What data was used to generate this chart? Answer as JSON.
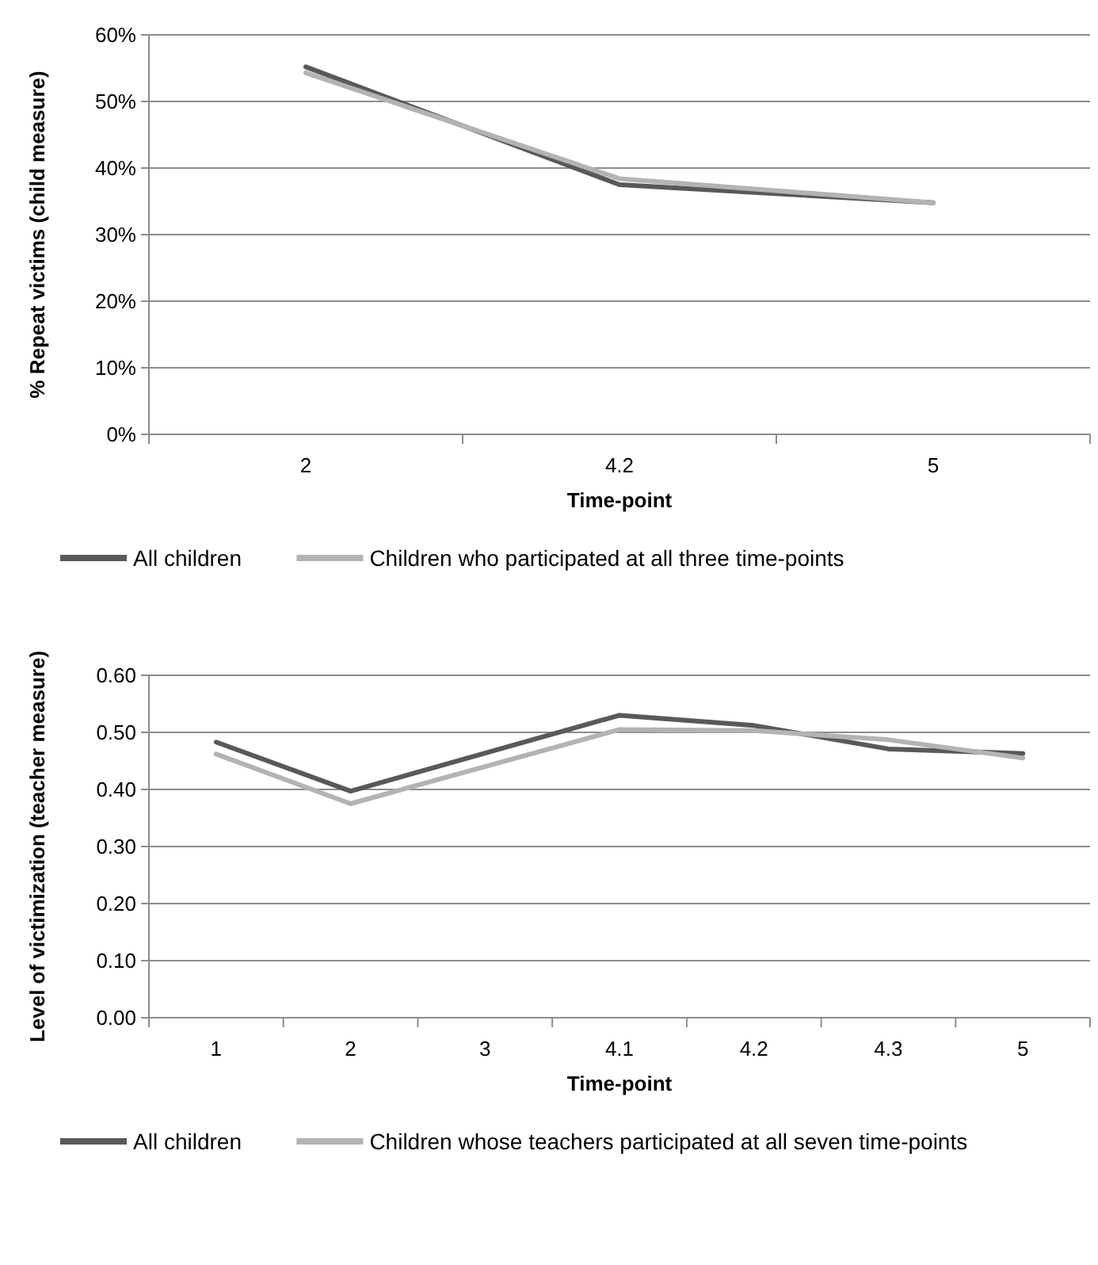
{
  "chart_data": [
    {
      "type": "line",
      "xlabel": "Time-point",
      "ylabel": "% Repeat victims (child measure)",
      "categories": [
        "2",
        "4.2",
        "5"
      ],
      "ylim": [
        0,
        60
      ],
      "yticks": [
        {
          "value": 0,
          "label": "0%"
        },
        {
          "value": 10,
          "label": "10%"
        },
        {
          "value": 20,
          "label": "20%"
        },
        {
          "value": 30,
          "label": "30%"
        },
        {
          "value": 40,
          "label": "40%"
        },
        {
          "value": 50,
          "label": "50%"
        },
        {
          "value": 60,
          "label": "60%"
        }
      ],
      "grid": "y",
      "legend": "bottom",
      "marker": "none",
      "line_style": "solid",
      "series": [
        {
          "name": "All children",
          "color": "#595959",
          "values": [
            55.2,
            37.5,
            34.8
          ]
        },
        {
          "name": "Children who participated at all three time-points",
          "color": "#b3b3b3",
          "values": [
            54.3,
            38.4,
            34.8
          ]
        }
      ]
    },
    {
      "type": "line",
      "xlabel": "Time-point",
      "ylabel": "Level of victimization (teacher measure)",
      "categories": [
        "1",
        "2",
        "3",
        "4.1",
        "4.2",
        "4.3",
        "5"
      ],
      "ylim": [
        0,
        0.6
      ],
      "yticks": [
        {
          "value": 0,
          "label": "0.00"
        },
        {
          "value": 0.1,
          "label": "0.10"
        },
        {
          "value": 0.2,
          "label": "0.20"
        },
        {
          "value": 0.3,
          "label": "0.30"
        },
        {
          "value": 0.4,
          "label": "0.40"
        },
        {
          "value": 0.5,
          "label": "0.50"
        },
        {
          "value": 0.6,
          "label": "0.60"
        }
      ],
      "grid": "y",
      "legend": "bottom",
      "marker": "none",
      "line_style": "solid",
      "series": [
        {
          "name": "All children",
          "color": "#595959",
          "values": [
            0.483,
            0.397,
            null,
            0.53,
            0.512,
            0.471,
            0.463
          ]
        },
        {
          "name": "Children whose teachers participated at all seven time-points",
          "color": "#b3b3b3",
          "values": [
            0.462,
            0.375,
            null,
            0.505,
            0.503,
            0.487,
            0.455
          ]
        }
      ]
    }
  ]
}
